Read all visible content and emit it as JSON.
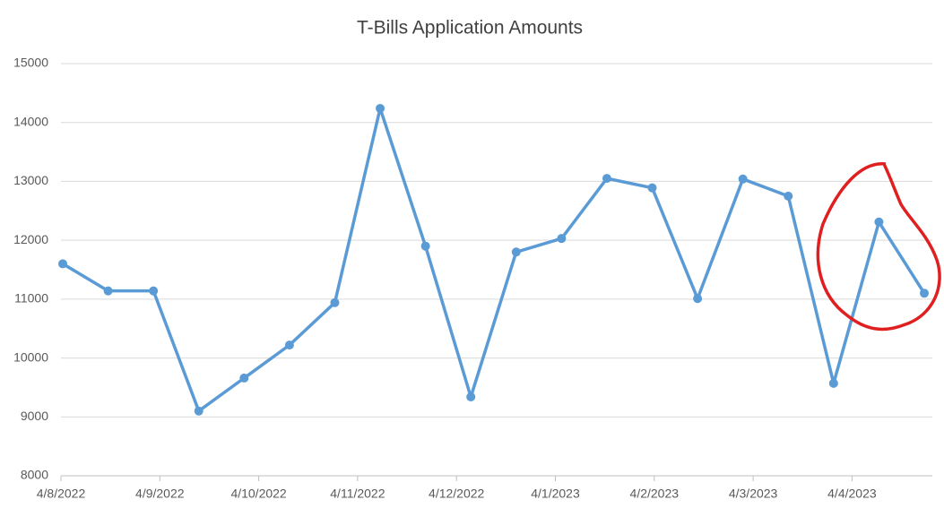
{
  "chart_data": {
    "type": "line",
    "title": "T-Bills Application Amounts",
    "x_tick_labels": [
      "4/8/2022",
      "4/9/2022",
      "4/10/2022",
      "4/11/2022",
      "4/12/2022",
      "4/1/2023",
      "4/2/2023",
      "4/3/2023",
      "4/4/2023"
    ],
    "values": [
      11600,
      11140,
      11140,
      9100,
      9660,
      10220,
      10940,
      14240,
      11900,
      9340,
      11800,
      12030,
      13050,
      12890,
      11010,
      13040,
      12750,
      9570,
      12310,
      11100
    ],
    "color": "#5b9bd5",
    "ylim": [
      8000,
      15000
    ],
    "yticks": [
      8000,
      9000,
      10000,
      11000,
      12000,
      13000,
      14000,
      15000
    ],
    "grid": true
  }
}
